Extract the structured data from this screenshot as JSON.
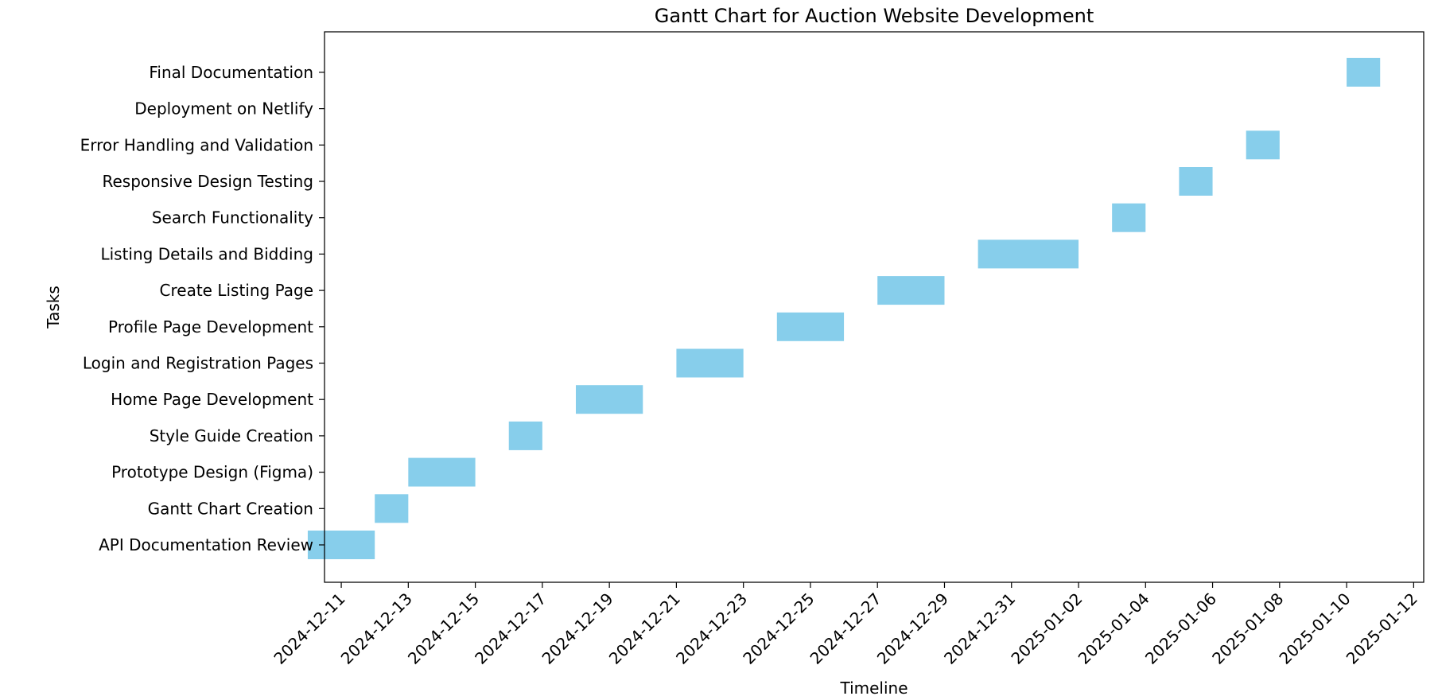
{
  "chart_data": {
    "type": "bar",
    "orientation": "horizontal",
    "title": "Gantt Chart for Auction Website Development",
    "xlabel": "Timeline",
    "ylabel": "Tasks",
    "grid": false,
    "bar_color": "#87CEEB",
    "xlim": [
      "2024-12-10",
      "2025-01-12"
    ],
    "xticks": [
      "2024-12-11",
      "2024-12-13",
      "2024-12-15",
      "2024-12-17",
      "2024-12-19",
      "2024-12-21",
      "2024-12-23",
      "2024-12-25",
      "2024-12-27",
      "2024-12-29",
      "2024-12-31",
      "2025-01-02",
      "2025-01-04",
      "2025-01-06",
      "2025-01-08",
      "2025-01-10",
      "2025-01-12"
    ],
    "tasks": [
      {
        "name": "API Documentation Review",
        "start": "2024-12-10",
        "end": "2024-12-12"
      },
      {
        "name": "Gantt Chart Creation",
        "start": "2024-12-12",
        "end": "2024-12-13"
      },
      {
        "name": "Prototype Design (Figma)",
        "start": "2024-12-13",
        "end": "2024-12-15"
      },
      {
        "name": "Style Guide Creation",
        "start": "2024-12-16",
        "end": "2024-12-17"
      },
      {
        "name": "Home Page Development",
        "start": "2024-12-18",
        "end": "2024-12-20"
      },
      {
        "name": "Login and Registration Pages",
        "start": "2024-12-21",
        "end": "2024-12-23"
      },
      {
        "name": "Profile Page Development",
        "start": "2024-12-24",
        "end": "2024-12-26"
      },
      {
        "name": "Create Listing Page",
        "start": "2024-12-27",
        "end": "2024-12-29"
      },
      {
        "name": "Listing Details and Bidding",
        "start": "2024-12-30",
        "end": "2025-01-02"
      },
      {
        "name": "Search Functionality",
        "start": "2025-01-03",
        "end": "2025-01-04"
      },
      {
        "name": "Responsive Design Testing",
        "start": "2025-01-05",
        "end": "2025-01-06"
      },
      {
        "name": "Error Handling and Validation",
        "start": "2025-01-07",
        "end": "2025-01-08"
      },
      {
        "name": "Deployment on Netlify",
        "start": "2025-01-09",
        "end": "2025-01-09"
      },
      {
        "name": "Final Documentation",
        "start": "2025-01-10",
        "end": "2025-01-11"
      }
    ]
  }
}
